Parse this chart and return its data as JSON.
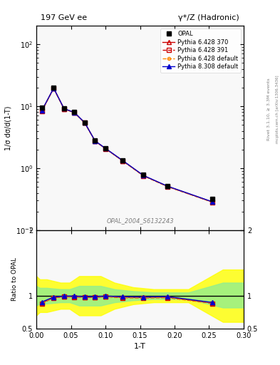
{
  "title_left": "197 GeV ee",
  "title_right": "γ*/Z (Hadronic)",
  "xlabel": "1-T",
  "ylabel_main": "1/σ dσ/d(1-T)",
  "ylabel_ratio": "Ratio to OPAL",
  "rivet_label": "Rivet 3.1.10, ≥ 3.3M events",
  "arxiv_label": "mcplots.cern.ch [arXiv:1306.3436]",
  "dataset_label": "OPAL_2004_S6132243",
  "opal_x": [
    0.008,
    0.025,
    0.04,
    0.055,
    0.07,
    0.085,
    0.1,
    0.125,
    0.155,
    0.19,
    0.255
  ],
  "opal_y": [
    9.5,
    20.0,
    9.2,
    8.0,
    5.5,
    2.8,
    2.1,
    1.35,
    0.78,
    0.52,
    0.32
  ],
  "py6370_x": [
    0.008,
    0.025,
    0.04,
    0.055,
    0.07,
    0.085,
    0.1,
    0.125,
    0.155,
    0.19,
    0.255
  ],
  "py6370_y": [
    8.5,
    19.5,
    9.1,
    7.9,
    5.4,
    2.75,
    2.08,
    1.32,
    0.76,
    0.51,
    0.285
  ],
  "py6370_color": "#cc0000",
  "py6370_label": "Pythia 6.428 370",
  "py6391_x": [
    0.008,
    0.025,
    0.04,
    0.055,
    0.07,
    0.085,
    0.1,
    0.125,
    0.155,
    0.19,
    0.255
  ],
  "py6391_y": [
    8.4,
    19.4,
    9.05,
    7.85,
    5.38,
    2.73,
    2.07,
    1.31,
    0.755,
    0.505,
    0.283
  ],
  "py6391_color": "#cc0000",
  "py6391_label": "Pythia 6.428 391",
  "py6def_x": [
    0.008,
    0.025,
    0.04,
    0.055,
    0.07,
    0.085,
    0.1,
    0.125,
    0.155,
    0.19,
    0.255
  ],
  "py6def_y": [
    8.45,
    19.45,
    9.07,
    7.87,
    5.39,
    2.74,
    2.075,
    1.315,
    0.757,
    0.507,
    0.284
  ],
  "py6def_color": "#ff8800",
  "py6def_label": "Pythia 6.428 default",
  "py8def_x": [
    0.008,
    0.025,
    0.04,
    0.055,
    0.07,
    0.085,
    0.1,
    0.125,
    0.155,
    0.19,
    0.255
  ],
  "py8def_y": [
    8.6,
    19.6,
    9.15,
    7.95,
    5.42,
    2.76,
    2.09,
    1.33,
    0.765,
    0.513,
    0.287
  ],
  "py8def_color": "#0000cc",
  "py8def_label": "Pythia 8.308 default",
  "ratio_py6370": [
    0.895,
    0.975,
    0.989,
    0.989,
    0.982,
    0.982,
    0.99,
    0.978,
    0.974,
    0.981,
    0.891
  ],
  "ratio_py6391": [
    0.884,
    0.97,
    0.983,
    0.981,
    0.978,
    0.975,
    0.986,
    0.97,
    0.968,
    0.971,
    0.884
  ],
  "ratio_py6def": [
    0.889,
    0.972,
    0.986,
    0.984,
    0.98,
    0.979,
    0.988,
    0.974,
    0.971,
    0.976,
    0.888
  ],
  "ratio_py8def": [
    0.905,
    0.98,
    0.994,
    0.994,
    0.986,
    0.986,
    0.995,
    0.985,
    0.981,
    0.987,
    0.897
  ],
  "green_band_x": [
    0.0,
    0.005,
    0.015,
    0.035,
    0.048,
    0.062,
    0.075,
    0.093,
    0.113,
    0.14,
    0.17,
    0.22,
    0.27,
    0.3
  ],
  "green_band_lo": [
    0.85,
    0.88,
    0.88,
    0.9,
    0.9,
    0.85,
    0.85,
    0.85,
    0.9,
    0.93,
    0.95,
    0.95,
    0.82,
    0.82
  ],
  "green_band_hi": [
    1.15,
    1.12,
    1.12,
    1.1,
    1.1,
    1.15,
    1.15,
    1.15,
    1.1,
    1.07,
    1.05,
    1.05,
    1.2,
    1.2
  ],
  "yellow_band_x": [
    0.0,
    0.005,
    0.015,
    0.035,
    0.048,
    0.062,
    0.075,
    0.093,
    0.113,
    0.14,
    0.17,
    0.22,
    0.27,
    0.3
  ],
  "yellow_band_lo": [
    0.7,
    0.75,
    0.75,
    0.8,
    0.8,
    0.7,
    0.7,
    0.7,
    0.8,
    0.87,
    0.9,
    0.9,
    0.6,
    0.6
  ],
  "yellow_band_hi": [
    1.3,
    1.25,
    1.25,
    1.2,
    1.2,
    1.3,
    1.3,
    1.3,
    1.2,
    1.13,
    1.1,
    1.1,
    1.4,
    1.4
  ],
  "xlim": [
    0.0,
    0.3
  ],
  "ylim_main_log": [
    0.1,
    200
  ],
  "ylim_ratio": [
    0.5,
    2.0
  ],
  "bg_color": "#f8f8f8"
}
